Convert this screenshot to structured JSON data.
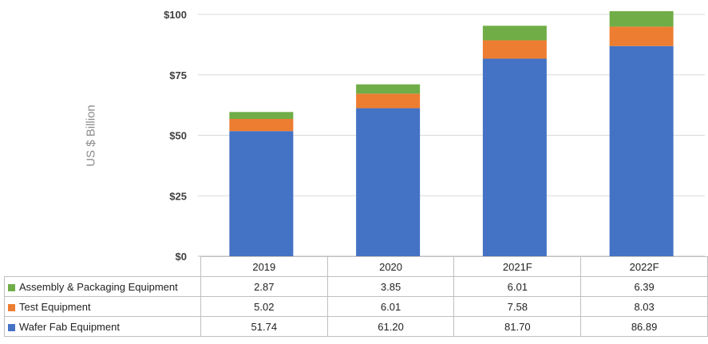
{
  "chart_data": {
    "type": "bar",
    "stacked": true,
    "categories": [
      "2019",
      "2020",
      "2021F",
      "2022F"
    ],
    "series": [
      {
        "name": "Wafer Fab Equipment",
        "color": "#4472c4",
        "values": [
          51.74,
          61.2,
          81.7,
          86.89
        ],
        "labels": [
          "51.74",
          "61.20",
          "81.70",
          "86.89"
        ]
      },
      {
        "name": "Test Equipment",
        "color": "#ed7d31",
        "values": [
          5.02,
          6.01,
          7.58,
          8.03
        ],
        "labels": [
          "5.02",
          "6.01",
          "7.58",
          "8.03"
        ]
      },
      {
        "name": "Assembly & Packaging Equipment",
        "color": "#70ad47",
        "values": [
          2.87,
          3.85,
          6.01,
          6.39
        ],
        "labels": [
          "2.87",
          "3.85",
          "6.01",
          "6.39"
        ]
      }
    ],
    "table_row_order": [
      2,
      1,
      0
    ],
    "ylabel": "US $ Billion",
    "ylim": [
      0,
      100
    ],
    "yticks": [
      0,
      25,
      50,
      75,
      100
    ],
    "ytick_labels": [
      "$0",
      "$25",
      "$50",
      "$75",
      "$100"
    ],
    "grid": true,
    "legend": "data-table"
  }
}
